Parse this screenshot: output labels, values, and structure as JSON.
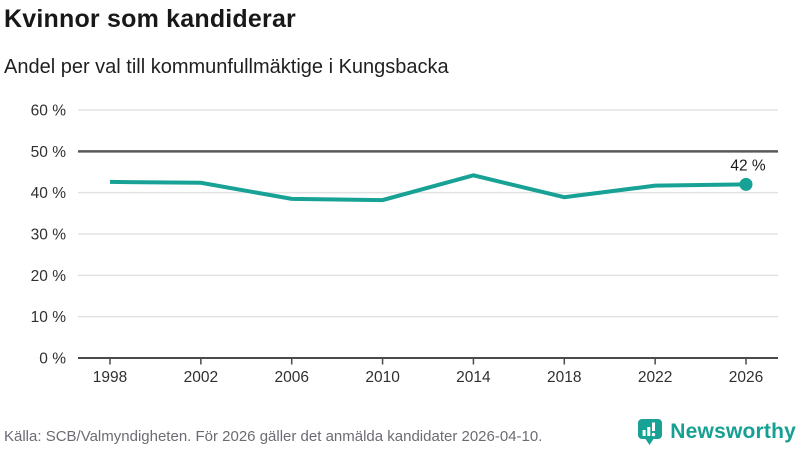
{
  "header": {
    "title": "Kvinnor som kandiderar",
    "subtitle": "Andel per val till kommunfullmäktige i Kungsbacka"
  },
  "chart_data": {
    "type": "line",
    "title": "Kvinnor som kandiderar",
    "subtitle": "Andel per val till kommunfullmäktige i Kungsbacka",
    "x": [
      1998,
      2002,
      2006,
      2010,
      2014,
      2018,
      2022,
      2026
    ],
    "values": [
      42.6,
      42.4,
      38.5,
      38.2,
      44.2,
      38.9,
      41.7,
      42
    ],
    "unit": "%",
    "ylim": [
      0,
      60
    ],
    "yticks": [
      0,
      10,
      20,
      30,
      40,
      50,
      60
    ],
    "ytick_suffix": " %",
    "reference_line": 50,
    "end_label": "42 %",
    "grid": "on",
    "legend": "none"
  },
  "colors": {
    "line": "#17a295",
    "dot": "#17a295",
    "grid": "#e2e2e2",
    "reference_line": "#58595b",
    "axis": "#4a4a4a",
    "tick_label": "#303030",
    "end_label": "#1a1a1a",
    "brand": "#16a093"
  },
  "footer": {
    "source": "Källa: SCB/Valmyndigheten. För 2026 gäller det anmälda kandidater 2026-04-10.",
    "brand": "Newsworthy"
  }
}
